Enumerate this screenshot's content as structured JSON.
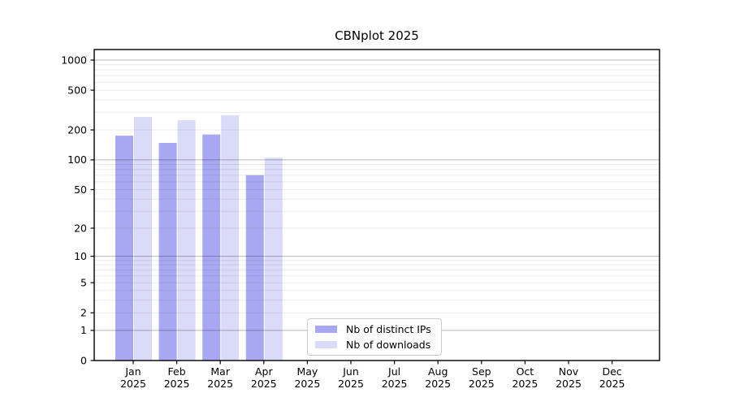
{
  "chart_data": {
    "type": "bar",
    "title": "CBNplot 2025",
    "categories": [
      "Jan",
      "Feb",
      "Mar",
      "Apr",
      "May",
      "Jun",
      "Jul",
      "Aug",
      "Sep",
      "Oct",
      "Nov",
      "Dec"
    ],
    "year": "2025",
    "series": [
      {
        "name": "Nb of distinct IPs",
        "color": "#a8a8f2",
        "values": [
          175,
          148,
          180,
          70,
          0,
          0,
          0,
          0,
          0,
          0,
          0,
          0
        ]
      },
      {
        "name": "Nb of downloads",
        "color": "#dadaf9",
        "values": [
          270,
          250,
          280,
          105,
          0,
          0,
          0,
          0,
          0,
          0,
          0,
          0
        ]
      }
    ],
    "yscale": "log1p",
    "ylim": [
      0,
      1250
    ],
    "yticks": [
      0,
      1,
      2,
      5,
      10,
      20,
      50,
      100,
      200,
      500,
      1000
    ],
    "major_grid_values": [
      1,
      10,
      100,
      1000
    ],
    "grid": "horizontal major + minor",
    "legend_position": "lower center inside axes",
    "colors": {
      "major_gridline": "rgba(0,0,0,0.28)",
      "minor_gridline": "rgba(0,0,0,0.08)",
      "spine": "#000000",
      "background": "#ffffff"
    }
  }
}
